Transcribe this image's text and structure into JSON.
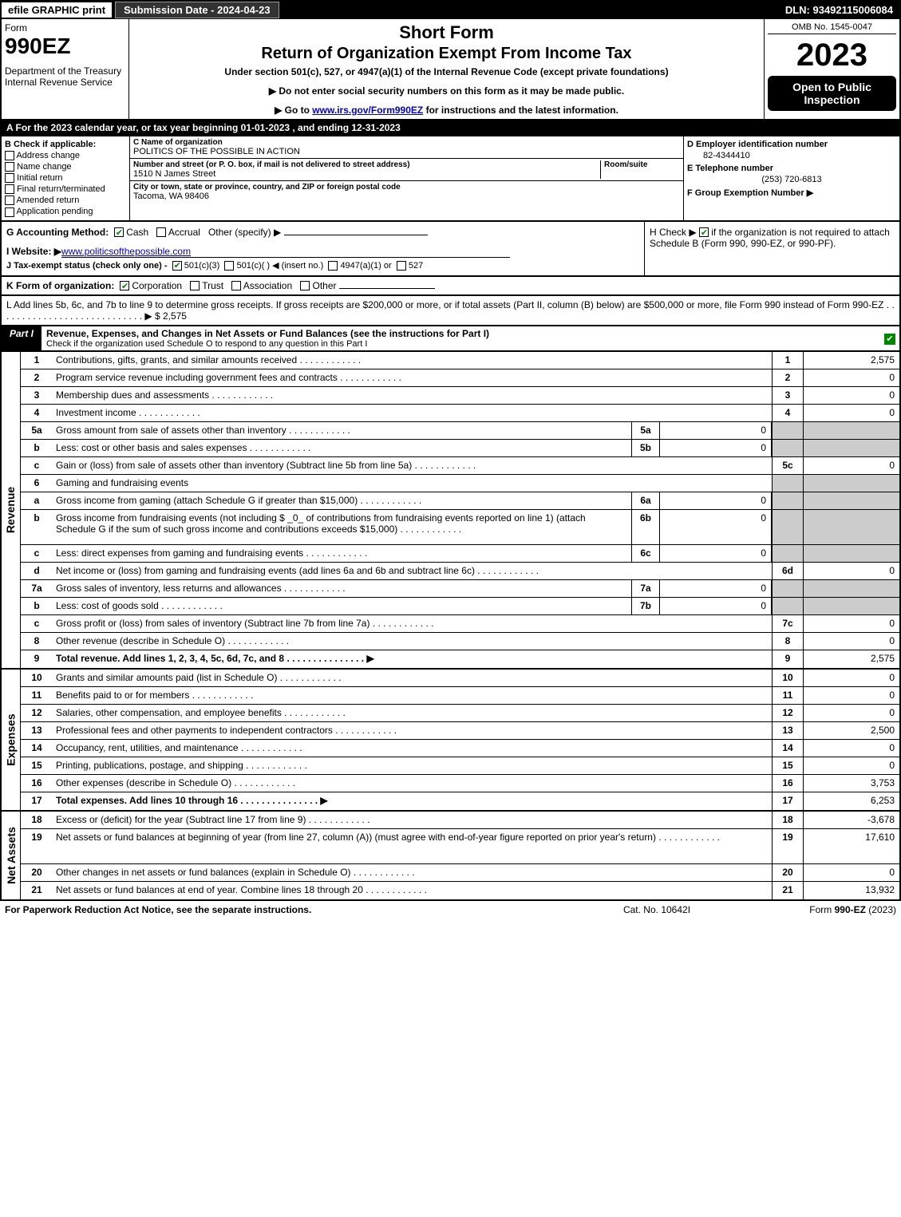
{
  "topbar": {
    "efile": "efile GRAPHIC print",
    "subdate": "Submission Date - 2024-04-23",
    "dln": "DLN: 93492115006084"
  },
  "header": {
    "form_label": "Form",
    "form_num": "990EZ",
    "dept": "Department of the Treasury\nInternal Revenue Service",
    "short": "Short Form",
    "title": "Return of Organization Exempt From Income Tax",
    "sub": "Under section 501(c), 527, or 4947(a)(1) of the Internal Revenue Code (except private foundations)",
    "note1": "▶ Do not enter social security numbers on this form as it may be made public.",
    "note2_pre": "▶ Go to ",
    "note2_link": "www.irs.gov/Form990EZ",
    "note2_post": " for instructions and the latest information.",
    "omb": "OMB No. 1545-0047",
    "year": "2023",
    "badge": "Open to Public Inspection"
  },
  "section_a": "A  For the 2023 calendar year, or tax year beginning 01-01-2023 , and ending 12-31-2023",
  "section_b": {
    "hdr": "B  Check if applicable:",
    "items": [
      "Address change",
      "Name change",
      "Initial return",
      "Final return/terminated",
      "Amended return",
      "Application pending"
    ]
  },
  "section_c": {
    "name_lbl": "C Name of organization",
    "name": "POLITICS OF THE POSSIBLE IN ACTION",
    "addr_lbl": "Number and street (or P. O. box, if mail is not delivered to street address)",
    "room_lbl": "Room/suite",
    "addr": "1510 N James Street",
    "city_lbl": "City or town, state or province, country, and ZIP or foreign postal code",
    "city": "Tacoma, WA  98406"
  },
  "section_d": {
    "ein_lbl": "D Employer identification number",
    "ein": "82-4344410",
    "phone_lbl": "E Telephone number",
    "phone": "(253) 720-6813",
    "group_lbl": "F Group Exemption Number   ▶"
  },
  "section_g": {
    "acct": "G Accounting Method:",
    "cash": "Cash",
    "accrual": "Accrual",
    "other": "Other (specify) ▶",
    "website_lbl": "I Website: ▶",
    "website": "www.politicsofthepossible.com",
    "tax_exempt": "J Tax-exempt status (check only one) -",
    "te_501c3": "501(c)(3)",
    "te_501c": "501(c)(  ) ◀ (insert no.)",
    "te_4947": "4947(a)(1) or",
    "te_527": "527"
  },
  "section_h": {
    "txt": "H   Check ▶",
    "rest": "if the organization is not required to attach Schedule B (Form 990, 990-EZ, or 990-PF)."
  },
  "section_k": "K Form of organization:",
  "k_opts": {
    "corp": "Corporation",
    "trust": "Trust",
    "assoc": "Association",
    "other": "Other"
  },
  "section_l": "L Add lines 5b, 6c, and 7b to line 9 to determine gross receipts. If gross receipts are $200,000 or more, or if total assets (Part II, column (B) below) are $500,000 or more, file Form 990 instead of Form 990-EZ",
  "section_l_amt": "▶ $ 2,575",
  "part1": {
    "tab": "Part I",
    "title": "Revenue, Expenses, and Changes in Net Assets or Fund Balances (see the instructions for Part I)",
    "sub": "Check if the organization used Schedule O to respond to any question in this Part I"
  },
  "revenue": [
    {
      "no": "1",
      "desc": "Contributions, gifts, grants, and similar amounts received",
      "mno": "1",
      "mamt": "2,575"
    },
    {
      "no": "2",
      "desc": "Program service revenue including government fees and contracts",
      "mno": "2",
      "mamt": "0"
    },
    {
      "no": "3",
      "desc": "Membership dues and assessments",
      "mno": "3",
      "mamt": "0"
    },
    {
      "no": "4",
      "desc": "Investment income",
      "mno": "4",
      "mamt": "0"
    },
    {
      "no": "5a",
      "desc": "Gross amount from sale of assets other than inventory",
      "sno": "5a",
      "samt": "0",
      "shaded": true
    },
    {
      "no": "b",
      "desc": "Less: cost or other basis and sales expenses",
      "sno": "5b",
      "samt": "0",
      "shaded": true
    },
    {
      "no": "c",
      "desc": "Gain or (loss) from sale of assets other than inventory (Subtract line 5b from line 5a)",
      "mno": "5c",
      "mamt": "0"
    },
    {
      "no": "6",
      "desc": "Gaming and fundraising events",
      "shaded": true,
      "noamt": true
    },
    {
      "no": "a",
      "desc": "Gross income from gaming (attach Schedule G if greater than $15,000)",
      "sno": "6a",
      "samt": "0",
      "shaded": true
    },
    {
      "no": "b",
      "desc": "Gross income from fundraising events (not including $ _0_ of contributions from fundraising events reported on line 1) (attach Schedule G if the sum of such gross income and contributions exceeds $15,000)",
      "sno": "6b",
      "samt": "0",
      "shaded": true,
      "tall": true
    },
    {
      "no": "c",
      "desc": "Less: direct expenses from gaming and fundraising events",
      "sno": "6c",
      "samt": "0",
      "shaded": true
    },
    {
      "no": "d",
      "desc": "Net income or (loss) from gaming and fundraising events (add lines 6a and 6b and subtract line 6c)",
      "mno": "6d",
      "mamt": "0"
    },
    {
      "no": "7a",
      "desc": "Gross sales of inventory, less returns and allowances",
      "sno": "7a",
      "samt": "0",
      "shaded": true
    },
    {
      "no": "b",
      "desc": "Less: cost of goods sold",
      "sno": "7b",
      "samt": "0",
      "shaded": true
    },
    {
      "no": "c",
      "desc": "Gross profit or (loss) from sales of inventory (Subtract line 7b from line 7a)",
      "mno": "7c",
      "mamt": "0"
    },
    {
      "no": "8",
      "desc": "Other revenue (describe in Schedule O)",
      "mno": "8",
      "mamt": "0"
    },
    {
      "no": "9",
      "desc": "Total revenue. Add lines 1, 2, 3, 4, 5c, 6d, 7c, and 8",
      "mno": "9",
      "mamt": "2,575",
      "bold": true,
      "arrow": true
    }
  ],
  "expenses": [
    {
      "no": "10",
      "desc": "Grants and similar amounts paid (list in Schedule O)",
      "mno": "10",
      "mamt": "0"
    },
    {
      "no": "11",
      "desc": "Benefits paid to or for members",
      "mno": "11",
      "mamt": "0"
    },
    {
      "no": "12",
      "desc": "Salaries, other compensation, and employee benefits",
      "mno": "12",
      "mamt": "0"
    },
    {
      "no": "13",
      "desc": "Professional fees and other payments to independent contractors",
      "mno": "13",
      "mamt": "2,500"
    },
    {
      "no": "14",
      "desc": "Occupancy, rent, utilities, and maintenance",
      "mno": "14",
      "mamt": "0"
    },
    {
      "no": "15",
      "desc": "Printing, publications, postage, and shipping",
      "mno": "15",
      "mamt": "0"
    },
    {
      "no": "16",
      "desc": "Other expenses (describe in Schedule O)",
      "mno": "16",
      "mamt": "3,753"
    },
    {
      "no": "17",
      "desc": "Total expenses. Add lines 10 through 16",
      "mno": "17",
      "mamt": "6,253",
      "bold": true,
      "arrow": true
    }
  ],
  "netassets": [
    {
      "no": "18",
      "desc": "Excess or (deficit) for the year (Subtract line 17 from line 9)",
      "mno": "18",
      "mamt": "-3,678"
    },
    {
      "no": "19",
      "desc": "Net assets or fund balances at beginning of year (from line 27, column (A)) (must agree with end-of-year figure reported on prior year's return)",
      "mno": "19",
      "mamt": "17,610",
      "tall": true
    },
    {
      "no": "20",
      "desc": "Other changes in net assets or fund balances (explain in Schedule O)",
      "mno": "20",
      "mamt": "0"
    },
    {
      "no": "21",
      "desc": "Net assets or fund balances at end of year. Combine lines 18 through 20",
      "mno": "21",
      "mamt": "13,932"
    }
  ],
  "footer": {
    "left": "For Paperwork Reduction Act Notice, see the separate instructions.",
    "mid": "Cat. No. 10642I",
    "right": "Form 990-EZ (2023)"
  },
  "vlabels": {
    "rev": "Revenue",
    "exp": "Expenses",
    "net": "Net Assets"
  },
  "colors": {
    "black": "#000000",
    "shade": "#cccccc",
    "green": "#008800",
    "link": "#0000cc"
  }
}
